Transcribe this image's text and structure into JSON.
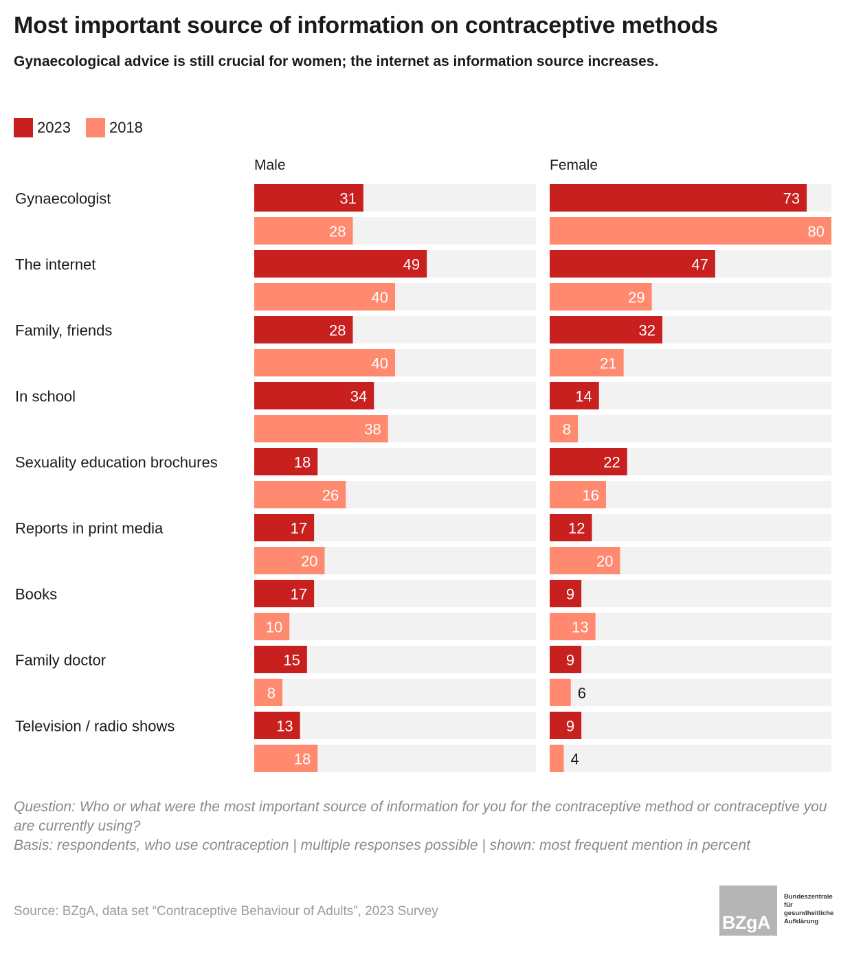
{
  "header": {
    "title": "Most important source of information on contraceptive methods",
    "subtitle": "Gynaecological advice is still crucial for women; the internet as information source increases."
  },
  "legend": [
    {
      "label": "2023",
      "color": "#c8201f"
    },
    {
      "label": "2018",
      "color": "#ff8a70"
    }
  ],
  "chart_data": {
    "type": "bar",
    "orientation": "horizontal",
    "grid": false,
    "legend_position": "top-left",
    "xlim": [
      0,
      80
    ],
    "categories": [
      "Gynaecologist",
      "The internet",
      "Family, friends",
      "In school",
      "Sexuality education brochures",
      "Reports in print media",
      "Books",
      "Family doctor",
      "Television / radio shows"
    ],
    "panels": [
      {
        "name": "Male",
        "series": [
          {
            "name": "2023",
            "color": "#c8201f",
            "values": [
              31,
              49,
              28,
              34,
              18,
              17,
              17,
              15,
              13
            ]
          },
          {
            "name": "2018",
            "color": "#ff8a70",
            "values": [
              28,
              40,
              40,
              38,
              26,
              20,
              10,
              8,
              18
            ]
          }
        ]
      },
      {
        "name": "Female",
        "series": [
          {
            "name": "2023",
            "color": "#c8201f",
            "values": [
              73,
              47,
              32,
              14,
              22,
              12,
              9,
              9,
              9
            ]
          },
          {
            "name": "2018",
            "color": "#ff8a70",
            "values": [
              80,
              29,
              21,
              8,
              16,
              20,
              13,
              6,
              4
            ]
          }
        ]
      }
    ],
    "track_color": "#f2f2f2"
  },
  "notes": {
    "question": "Question: Who or what were the most important source of information for you for the contraceptive method or contraceptive you are currently using?",
    "basis": "Basis: respondents, who use contraception | multiple responses possible | shown: most frequent mention in percent"
  },
  "source": "Source: BZgA, data set “Contraceptive Behaviour of Adults”, 2023 Survey",
  "logo": {
    "mark": "BZgA",
    "lines": [
      "Bundeszentrale",
      "für",
      "gesundheitliche",
      "Aufklärung"
    ]
  }
}
